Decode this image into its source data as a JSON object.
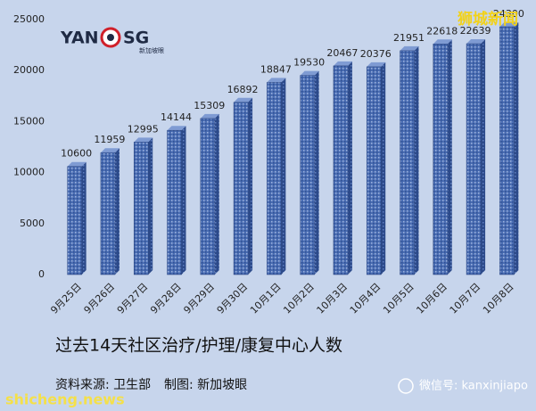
{
  "chart_data": {
    "type": "bar3d",
    "title": "过去14天社区治疗/护理/康复中心人数",
    "source": "资料来源:  卫生部",
    "credit": "制图:  新加坡眼",
    "categories": [
      "9月25日",
      "9月26日",
      "9月27日",
      "9月28日",
      "9月29日",
      "9月30日",
      "10月1日",
      "10月2日",
      "10月3日",
      "10月4日",
      "10月5日",
      "10月6日",
      "10月7日",
      "10月8日"
    ],
    "values": [
      10600,
      11959,
      12995,
      14144,
      15309,
      16892,
      18847,
      19530,
      20467,
      20376,
      21951,
      22618,
      22639,
      24300
    ],
    "color": "#4a6db3",
    "ylim": [
      0,
      25000
    ],
    "yticks": [
      0,
      5000,
      10000,
      15000,
      20000,
      25000
    ],
    "grid": false
  },
  "logo": {
    "left": "YAN",
    "right": "SG",
    "sub": "新加坡眼"
  },
  "watermarks": {
    "top": "狮城新闻",
    "wechat": "微信号: kanxinjiapo",
    "site": "shicheng.news"
  }
}
